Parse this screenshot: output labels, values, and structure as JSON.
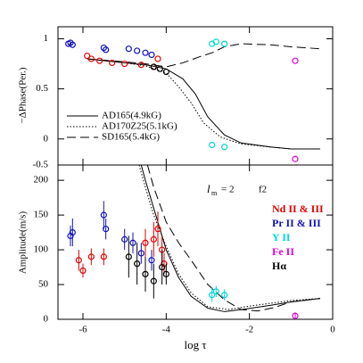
{
  "chart_data": [
    {
      "type": "scatter",
      "ylabel": "−ΔPhase(Per.)",
      "xlim": [
        -6.6,
        0
      ],
      "xticks": [
        -6,
        -4,
        -2,
        0
      ],
      "ylim": [
        -0.26,
        1.12
      ],
      "yticks": [
        1,
        0.5,
        0
      ],
      "corner_label": "-0.5",
      "series": [
        {
          "color": "#1010c0",
          "x": [
            -6.35,
            -6.3,
            -6.25,
            -5.5,
            -5.45,
            -4.9,
            -4.7,
            -4.5,
            -4.35
          ],
          "values": [
            0.95,
            0.96,
            0.94,
            0.91,
            0.89,
            0.9,
            0.88,
            0.86,
            0.84
          ]
        },
        {
          "color": "#e00000",
          "x": [
            -5.9,
            -5.8,
            -5.6,
            -5.3,
            -5.0,
            -4.6,
            -4.3,
            -4.2
          ],
          "values": [
            0.83,
            0.8,
            0.78,
            0.76,
            0.75,
            0.74,
            0.72,
            0.8
          ]
        },
        {
          "color": "#000000",
          "x": [
            -4.3,
            -4.15,
            -4.0
          ],
          "values": [
            0.72,
            0.7,
            0.67
          ]
        },
        {
          "color": "#00d8d8",
          "x": [
            -2.9,
            -2.8,
            -2.6,
            -2.9,
            -2.6
          ],
          "values": [
            0.95,
            0.97,
            0.95,
            -0.06,
            -0.08
          ]
        },
        {
          "color": "#e000e0",
          "x": [
            -0.9,
            -0.9
          ],
          "values": [
            0.78,
            -0.2
          ]
        }
      ],
      "models": [
        {
          "name": "AD165(4.9kG)",
          "dash": "none",
          "x": [
            -5.9,
            -5,
            -4.5,
            -4,
            -3.6,
            -3.3,
            -3,
            -2.6,
            -2.2,
            -1.5,
            -1,
            -0.3
          ],
          "values": [
            0.8,
            0.76,
            0.74,
            0.7,
            0.6,
            0.45,
            0.22,
            0.04,
            -0.04,
            -0.08,
            -0.1,
            -0.1
          ]
        },
        {
          "name": "AD170Z25(5.1kG)",
          "dash": "1.5 2",
          "x": [
            -5.9,
            -5,
            -4.5,
            -4,
            -3.7,
            -3.4,
            -3.1,
            -2.7,
            -2.2,
            -1.5,
            -1,
            -0.3
          ],
          "values": [
            0.8,
            0.76,
            0.73,
            0.66,
            0.52,
            0.36,
            0.16,
            0.02,
            -0.05,
            -0.08,
            -0.1,
            -0.1
          ]
        },
        {
          "name": "SD165(5.4kG)",
          "dash": "10 5",
          "x": [
            -5.9,
            -5,
            -4.5,
            -4,
            -3.6,
            -3.2,
            -2.9,
            -2.6,
            -2.2,
            -1.5,
            -1,
            -0.3
          ],
          "values": [
            0.8,
            0.77,
            0.75,
            0.72,
            0.76,
            0.82,
            0.86,
            0.92,
            0.95,
            0.94,
            0.92,
            0.9
          ]
        }
      ]
    },
    {
      "type": "scatter",
      "ylabel": "Amplitude(m/s)",
      "xlabel": "log τ",
      "xlim": [
        -6.6,
        0
      ],
      "xticks": [
        -6,
        -4,
        -2,
        0
      ],
      "ylim": [
        0,
        222
      ],
      "yticks": [
        200,
        150,
        100,
        50,
        0
      ],
      "mode_symbol": "l",
      "mode_sub": "m",
      "mode_value": "= 2",
      "mode_name": "f2",
      "series": [
        {
          "name": "Nd II & III",
          "color": "#e00000",
          "x": [
            -6.1,
            -6.0,
            -5.8,
            -5.5,
            -4.5,
            -4.3,
            -4.2,
            -4.1,
            -4.05
          ],
          "values": [
            85,
            70,
            90,
            90,
            110,
            115,
            130,
            100,
            80
          ],
          "errors": [
            15,
            10,
            12,
            12,
            20,
            25,
            25,
            20,
            15
          ]
        },
        {
          "name": "Pr II & III",
          "color": "#1010c0",
          "x": [
            -6.3,
            -6.25,
            -5.5,
            -5.45,
            -5.0,
            -4.8,
            -4.6,
            -4.35
          ],
          "values": [
            120,
            125,
            150,
            130,
            115,
            110,
            95,
            85
          ],
          "errors": [
            15,
            20,
            20,
            15,
            15,
            15,
            15,
            15
          ]
        },
        {
          "name": "Y II",
          "color": "#00d8d8",
          "x": [
            -2.9,
            -2.8,
            -2.6
          ],
          "values": [
            35,
            40,
            35
          ],
          "errors": [
            10,
            8,
            8
          ]
        },
        {
          "name": "Fe II",
          "color": "#e000e0",
          "x": [
            -0.9
          ],
          "values": [
            5
          ],
          "errors": [
            5
          ]
        },
        {
          "name": "Hα",
          "color": "#000000",
          "x": [
            -4.9,
            -4.7,
            -4.5,
            -4.3,
            -4.1,
            -4.0
          ],
          "values": [
            90,
            80,
            65,
            55,
            75,
            65
          ],
          "errors": [
            30,
            30,
            25,
            25,
            25,
            15
          ]
        }
      ],
      "models": [
        {
          "dash": "none",
          "x": [
            -4.6,
            -4.5,
            -4.3,
            -4,
            -3.7,
            -3.4,
            -3,
            -2.6,
            -2.2,
            -1.5,
            -1,
            -0.3
          ],
          "values": [
            222,
            200,
            160,
            100,
            60,
            33,
            16,
            11,
            14,
            20,
            25,
            30
          ]
        },
        {
          "dash": "1.5 2",
          "x": [
            -4.65,
            -4.5,
            -4.3,
            -4,
            -3.7,
            -3.4,
            -3,
            -2.5,
            -2,
            -1.5,
            -1,
            -0.3
          ],
          "values": [
            222,
            190,
            150,
            105,
            65,
            38,
            18,
            14,
            19,
            23,
            27,
            30
          ]
        },
        {
          "dash": "10 5",
          "x": [
            -4.45,
            -4.3,
            -4,
            -3.7,
            -3.4,
            -3,
            -2.6,
            -2.2,
            -1.8,
            -1.4,
            -1,
            -0.3
          ],
          "values": [
            222,
            190,
            140,
            110,
            85,
            50,
            28,
            14,
            12,
            17,
            25,
            30
          ]
        }
      ]
    }
  ]
}
